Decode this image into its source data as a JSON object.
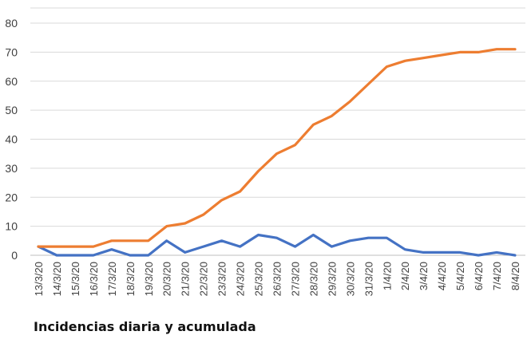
{
  "caption": "Incidencias diaria y acumulada",
  "chart_data": {
    "type": "line",
    "title": "",
    "xlabel": "",
    "ylabel": "",
    "ylim": [
      0,
      80
    ],
    "yticks": [
      0,
      10,
      20,
      30,
      40,
      50,
      60,
      70,
      80
    ],
    "grid": true,
    "legend": "none",
    "categories": [
      "13/3/20",
      "14/3/20",
      "15/3/20",
      "16/3/20",
      "17/3/20",
      "18/3/20",
      "19/3/20",
      "20/3/20",
      "21/3/20",
      "22/3/20",
      "23/3/20",
      "24/3/20",
      "25/3/20",
      "26/3/20",
      "27/3/20",
      "28/3/20",
      "29/3/20",
      "30/3/20",
      "31/3/20",
      "1/4/20",
      "2/4/20",
      "3/4/20",
      "4/4/20",
      "5/4/20",
      "6/4/20",
      "7/4/20",
      "8/4/20"
    ],
    "series": [
      {
        "color": "#4472c4",
        "values": [
          3,
          0,
          0,
          0,
          2,
          0,
          0,
          5,
          1,
          3,
          5,
          3,
          7,
          6,
          3,
          7,
          3,
          5,
          6,
          6,
          2,
          1,
          1,
          1,
          0,
          1,
          0
        ]
      },
      {
        "color": "#ed7d31",
        "values": [
          3,
          3,
          3,
          3,
          5,
          5,
          5,
          10,
          11,
          14,
          19,
          22,
          29,
          35,
          38,
          45,
          48,
          53,
          59,
          65,
          67,
          68,
          69,
          70,
          70,
          71,
          71
        ]
      }
    ]
  }
}
